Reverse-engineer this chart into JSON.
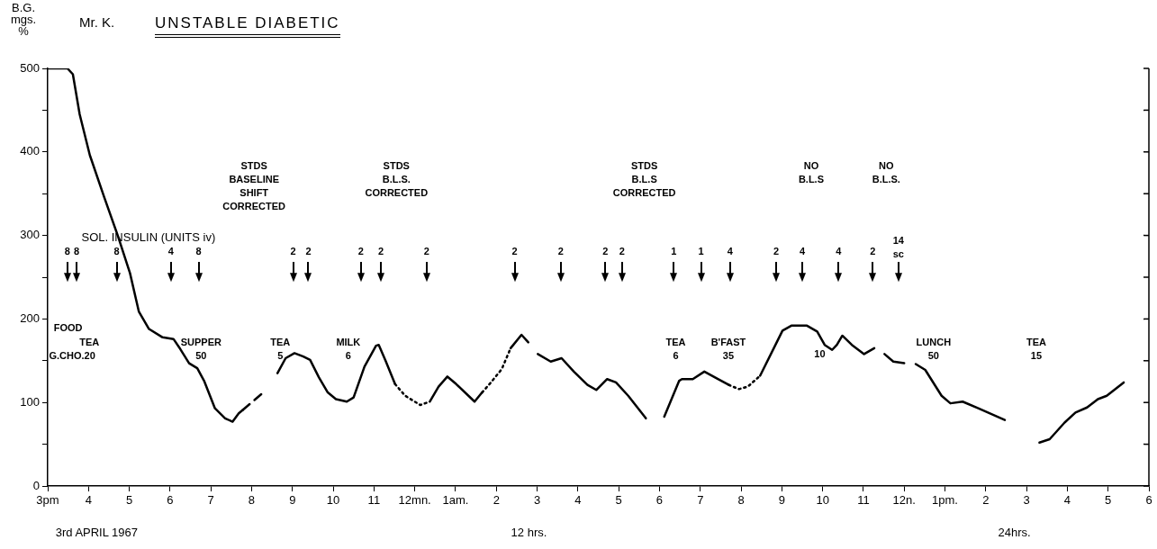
{
  "chart_data": {
    "type": "line",
    "title": "UNSTABLE DIABETIC",
    "subtitle": "Mr. K.",
    "ylabel": "B.G.\nmgs.\n%",
    "xlim": [
      "1967-04-03T15:00",
      "1967-04-04T18:00"
    ],
    "ylim": [
      0,
      500
    ],
    "xticks": [
      {
        "value": "1967-04-03T15:00",
        "label": "3pm"
      },
      {
        "value": "1967-04-03T16:00",
        "label": "4"
      },
      {
        "value": "1967-04-03T17:00",
        "label": "5"
      },
      {
        "value": "1967-04-03T18:00",
        "label": "6"
      },
      {
        "value": "1967-04-03T19:00",
        "label": "7"
      },
      {
        "value": "1967-04-03T20:00",
        "label": "8"
      },
      {
        "value": "1967-04-03T21:00",
        "label": "9"
      },
      {
        "value": "1967-04-03T22:00",
        "label": "10"
      },
      {
        "value": "1967-04-03T23:00",
        "label": "11"
      },
      {
        "value": "1967-04-04T00:00",
        "label": "12mn."
      },
      {
        "value": "1967-04-04T01:00",
        "label": "1am."
      },
      {
        "value": "1967-04-04T02:00",
        "label": "2"
      },
      {
        "value": "1967-04-04T03:00",
        "label": "3"
      },
      {
        "value": "1967-04-04T04:00",
        "label": "4"
      },
      {
        "value": "1967-04-04T05:00",
        "label": "5"
      },
      {
        "value": "1967-04-04T06:00",
        "label": "6"
      },
      {
        "value": "1967-04-04T07:00",
        "label": "7"
      },
      {
        "value": "1967-04-04T08:00",
        "label": "8"
      },
      {
        "value": "1967-04-04T09:00",
        "label": "9"
      },
      {
        "value": "1967-04-04T10:00",
        "label": "10"
      },
      {
        "value": "1967-04-04T11:00",
        "label": "11"
      },
      {
        "value": "1967-04-04T12:00",
        "label": "12n."
      },
      {
        "value": "1967-04-04T13:00",
        "label": "1pm."
      },
      {
        "value": "1967-04-04T14:00",
        "label": "2"
      },
      {
        "value": "1967-04-04T15:00",
        "label": "3"
      },
      {
        "value": "1967-04-04T16:00",
        "label": "4"
      },
      {
        "value": "1967-04-04T17:00",
        "label": "5"
      },
      {
        "value": "1967-04-04T18:00",
        "label": "6"
      }
    ],
    "yticks": [
      0,
      {
        "value": 50,
        "label": null
      },
      100,
      {
        "value": 150,
        "label": null
      },
      200,
      {
        "value": 250,
        "label": null
      },
      300,
      {
        "value": 350,
        "label": null
      },
      400,
      {
        "value": 450,
        "label": null
      },
      500
    ],
    "series": [
      {
        "type": "line",
        "color": "#000000",
        "line_style": "solid",
        "x": [
          "1967-04-03T15:00",
          "1967-04-03T15:29",
          "1967-04-03T15:37",
          "1967-04-03T15:47",
          "1967-04-03T16:02",
          "1967-04-03T16:23",
          "1967-04-03T16:43",
          "1967-04-03T17:01",
          "1967-04-03T17:14",
          "1967-04-03T17:29",
          "1967-04-03T17:49",
          "1967-04-03T18:05",
          "1967-04-03T18:15",
          "1967-04-03T18:28",
          "1967-04-03T18:40",
          "1967-04-03T18:50",
          "1967-04-03T19:06",
          "1967-04-03T19:21",
          "1967-04-03T19:32",
          "1967-04-03T19:41",
          "1967-04-03T19:47"
        ],
        "values": [
          500,
          500,
          493,
          445,
          396,
          346,
          300,
          255,
          209,
          188,
          178,
          176,
          164,
          147,
          141,
          126,
          93,
          81,
          77,
          87,
          91
        ]
      },
      {
        "type": "line",
        "color": "#000000",
        "line_style": "dashed",
        "x": [
          "1967-04-03T19:47",
          "1967-04-03T20:20"
        ],
        "values": [
          91,
          114
        ]
      },
      {
        "type": "line",
        "color": "#000000",
        "line_style": "solid",
        "x": [
          "1967-04-03T20:38",
          "1967-04-03T20:50",
          "1967-04-03T21:03",
          "1967-04-03T21:16",
          "1967-04-03T21:26",
          "1967-04-03T21:39",
          "1967-04-03T21:52",
          "1967-04-03T22:04",
          "1967-04-03T22:20",
          "1967-04-03T22:30",
          "1967-04-03T22:46",
          "1967-04-03T23:03",
          "1967-04-03T23:07",
          "1967-04-03T23:17",
          "1967-04-03T23:31"
        ],
        "values": [
          135,
          153,
          159,
          155,
          151,
          130,
          112,
          104,
          101,
          106,
          143,
          168,
          169,
          150,
          122
        ]
      },
      {
        "type": "line",
        "color": "#000000",
        "line_style": "dotted",
        "x": [
          "1967-04-03T23:31",
          "1967-04-03T23:46",
          "1967-04-04T00:08",
          "1967-04-04T00:22"
        ],
        "values": [
          122,
          108,
          97,
          101
        ]
      },
      {
        "type": "line",
        "color": "#000000",
        "line_style": "solid",
        "x": [
          "1967-04-04T00:22",
          "1967-04-04T00:35",
          "1967-04-04T00:48",
          "1967-04-04T01:01",
          "1967-04-04T01:28",
          "1967-04-04T01:39"
        ],
        "values": [
          101,
          119,
          131,
          122,
          101,
          112
        ]
      },
      {
        "type": "line",
        "color": "#000000",
        "line_style": "dotted",
        "x": [
          "1967-04-04T01:39",
          "1967-04-04T01:52",
          "1967-04-04T02:08",
          "1967-04-04T02:21"
        ],
        "values": [
          112,
          124,
          140,
          165
        ]
      },
      {
        "type": "line",
        "color": "#000000",
        "line_style": "solid",
        "x": [
          "1967-04-04T02:21",
          "1967-04-04T02:37",
          "1967-04-04T02:47"
        ],
        "values": [
          165,
          181,
          172
        ]
      },
      {
        "type": "line",
        "color": "#000000",
        "line_style": "solid",
        "x": [
          "1967-04-04T03:01",
          "1967-04-04T03:20",
          "1967-04-04T03:36",
          "1967-04-04T03:54",
          "1967-04-04T04:14",
          "1967-04-04T04:27",
          "1967-04-04T04:43",
          "1967-04-04T04:56",
          "1967-04-04T05:14",
          "1967-04-04T05:40"
        ],
        "values": [
          158,
          149,
          153,
          137,
          121,
          115,
          128,
          124,
          108,
          81
        ]
      },
      {
        "type": "line",
        "color": "#000000",
        "line_style": "solid",
        "x": [
          "1967-04-04T06:07",
          "1967-04-04T06:29",
          "1967-04-04T06:33",
          "1967-04-04T06:49",
          "1967-04-04T07:06",
          "1967-04-04T07:26",
          "1967-04-04T07:42"
        ],
        "values": [
          83,
          126,
          128,
          128,
          137,
          128,
          121
        ]
      },
      {
        "type": "line",
        "color": "#000000",
        "line_style": "dotted",
        "x": [
          "1967-04-04T07:42",
          "1967-04-04T07:57",
          "1967-04-04T08:10",
          "1967-04-04T08:28"
        ],
        "values": [
          121,
          116,
          119,
          132
        ]
      },
      {
        "type": "line",
        "color": "#000000",
        "line_style": "solid",
        "x": [
          "1967-04-04T08:28",
          "1967-04-04T08:50",
          "1967-04-04T09:01",
          "1967-04-04T09:14",
          "1967-04-04T09:37",
          "1967-04-04T09:52",
          "1967-04-04T10:03",
          "1967-04-04T10:14",
          "1967-04-04T10:21",
          "1967-04-04T10:29",
          "1967-04-04T10:43",
          "1967-04-04T11:01",
          "1967-04-04T11:16"
        ],
        "values": [
          132,
          168,
          186,
          192,
          192,
          185,
          169,
          163,
          169,
          180,
          169,
          158,
          165
        ]
      },
      {
        "type": "line",
        "color": "#000000",
        "line_style": "solid",
        "x": [
          "1967-04-04T11:31",
          "1967-04-04T11:44",
          "1967-04-04T12:00"
        ],
        "values": [
          158,
          149,
          147
        ]
      },
      {
        "type": "line",
        "color": "#000000",
        "line_style": "solid",
        "x": [
          "1967-04-04T12:17",
          "1967-04-04T12:31",
          "1967-04-04T12:55",
          "1967-04-04T13:08",
          "1967-04-04T13:26",
          "1967-04-04T13:49",
          "1967-04-04T14:28"
        ],
        "values": [
          146,
          139,
          108,
          99,
          101,
          93,
          79
        ]
      },
      {
        "type": "line",
        "color": "#000000",
        "line_style": "solid",
        "x": [
          "1967-04-04T15:19",
          "1967-04-04T15:34",
          "1967-04-04T15:56",
          "1967-04-04T16:12",
          "1967-04-04T16:29",
          "1967-04-04T16:45",
          "1967-04-04T16:58",
          "1967-04-04T17:23"
        ],
        "values": [
          52,
          56,
          76,
          88,
          94,
          104,
          108,
          124
        ]
      }
    ],
    "annotations": [
      "SOL. INSULIN (UNITS iv)",
      "STDS\nBASELINE\nSHIFT\nCORRECTED",
      "STDS\nB.L.S.\nCORRECTED",
      "STDS\nB.L.S\nCORRECTED",
      "NO\nB.L.S",
      "NO\nB.L.S.",
      "FOOD",
      "TEA",
      "G.CHO.20",
      "SUPPER\n50",
      "TEA\n5",
      "MILK\n6",
      "TEA\n6",
      "B'FAST\n35",
      "10",
      "LUNCH\n50",
      "TEA\n15",
      "3rd APRIL 1967",
      "12 hrs.",
      "24hrs.",
      "8",
      "8",
      "8",
      "4",
      "8",
      "2",
      "2",
      "2",
      "2",
      "2",
      "2",
      "2",
      "2",
      "2",
      "1",
      "1",
      "4",
      "2",
      "4",
      "4",
      "2",
      "14\nsc"
    ]
  }
}
